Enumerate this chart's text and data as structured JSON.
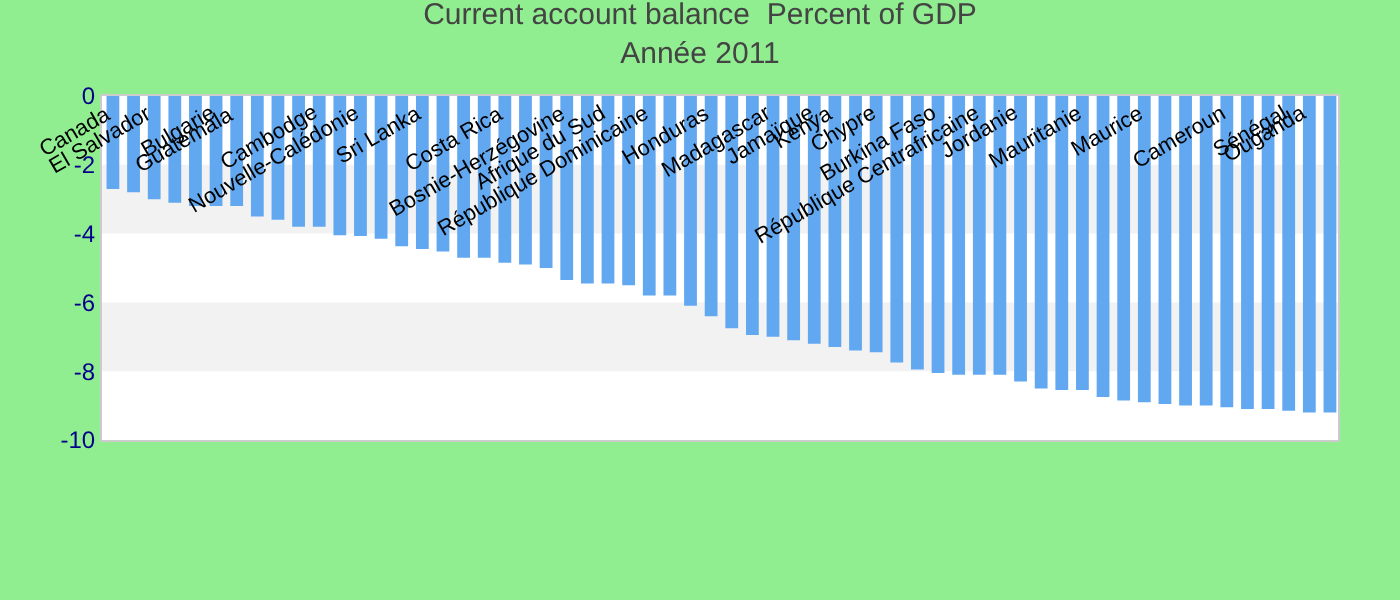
{
  "chart_data": {
    "type": "bar",
    "title": "Current account balance  Percent of GDP",
    "subtitle": "Année 2011",
    "categories": [
      "Canada",
      null,
      "El Salvador",
      null,
      null,
      "Bulgarie",
      "Guatemala",
      null,
      null,
      null,
      "Cambodge",
      null,
      "Nouvelle-Calédonie",
      null,
      null,
      "Sri Lanka",
      null,
      null,
      null,
      "Costa Rica",
      null,
      null,
      "Bosnie-Herzégovine",
      null,
      "Afrique du Sud",
      null,
      "République Dominicaine",
      null,
      null,
      "Honduras",
      null,
      null,
      "Madagascar",
      null,
      "Jamaïque",
      "Kenya",
      null,
      "Chypre",
      null,
      null,
      "Burkina Faso",
      null,
      "République Centrafricaine",
      null,
      "Jordanie",
      null,
      null,
      "Mauritanie",
      null,
      null,
      "Maurice",
      null,
      null,
      null,
      "Cameroun",
      null,
      null,
      "Sénégal",
      "Ouganda",
      null
    ],
    "values": [
      -2.7,
      -2.8,
      -3.0,
      -3.1,
      -3.2,
      -3.2,
      -3.2,
      -3.5,
      -3.6,
      -3.8,
      -3.8,
      -4.05,
      -4.07,
      -4.15,
      -4.37,
      -4.45,
      -4.52,
      -4.7,
      -4.7,
      -4.85,
      -4.9,
      -5.0,
      -5.35,
      -5.45,
      -5.45,
      -5.5,
      -5.8,
      -5.8,
      -6.1,
      -6.4,
      -6.75,
      -6.95,
      -7.0,
      -7.1,
      -7.2,
      -7.3,
      -7.4,
      -7.45,
      -7.75,
      -7.95,
      -8.05,
      -8.1,
      -8.1,
      -8.1,
      -8.3,
      -8.5,
      -8.55,
      -8.55,
      -8.75,
      -8.85,
      -8.9,
      -8.95,
      -9.0,
      -9.0,
      -9.05,
      -9.1,
      -9.1,
      -9.15,
      -9.2,
      -9.2
    ],
    "color": "#62a8f0",
    "ylim": [
      -10,
      0
    ],
    "yticks": [
      -10,
      -8,
      -6,
      -4,
      -2,
      0
    ],
    "bands": [
      {
        "axis": "y",
        "from": -4,
        "to": -2,
        "color": "#f2f2f2"
      },
      {
        "axis": "y",
        "from": -8,
        "to": -6,
        "color": "#f2f2f2"
      }
    ],
    "grid": false
  }
}
